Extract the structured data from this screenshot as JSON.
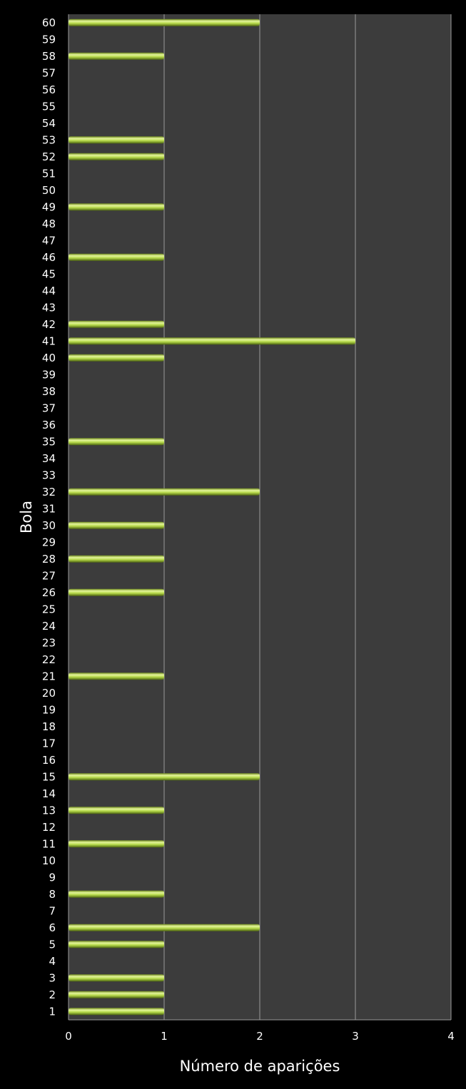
{
  "chart_data": {
    "type": "bar",
    "orientation": "horizontal",
    "title": "",
    "xlabel": "Número de aparições",
    "ylabel": "Bola",
    "xlim": [
      0,
      4
    ],
    "xticks": [
      0,
      1,
      2,
      3,
      4
    ],
    "grid": "vertical",
    "legend": "none",
    "colors": {
      "background": "#000000",
      "plot_area": "#3c3c3c",
      "bar": "#b5d84a",
      "grid": "#9a9a9a"
    },
    "categories": [
      1,
      2,
      3,
      4,
      5,
      6,
      7,
      8,
      9,
      10,
      11,
      12,
      13,
      14,
      15,
      16,
      17,
      18,
      19,
      20,
      21,
      22,
      23,
      24,
      25,
      26,
      27,
      28,
      29,
      30,
      31,
      32,
      33,
      34,
      35,
      36,
      37,
      38,
      39,
      40,
      41,
      42,
      43,
      44,
      45,
      46,
      47,
      48,
      49,
      50,
      51,
      52,
      53,
      54,
      55,
      56,
      57,
      58,
      59,
      60
    ],
    "values": [
      1,
      1,
      1,
      0,
      1,
      2,
      0,
      1,
      0,
      0,
      1,
      0,
      1,
      0,
      2,
      0,
      0,
      0,
      0,
      0,
      1,
      0,
      0,
      0,
      0,
      1,
      0,
      1,
      0,
      1,
      0,
      2,
      0,
      0,
      1,
      0,
      0,
      0,
      0,
      1,
      3,
      1,
      0,
      0,
      0,
      1,
      0,
      0,
      1,
      0,
      0,
      1,
      1,
      0,
      0,
      0,
      0,
      1,
      0,
      2
    ]
  }
}
